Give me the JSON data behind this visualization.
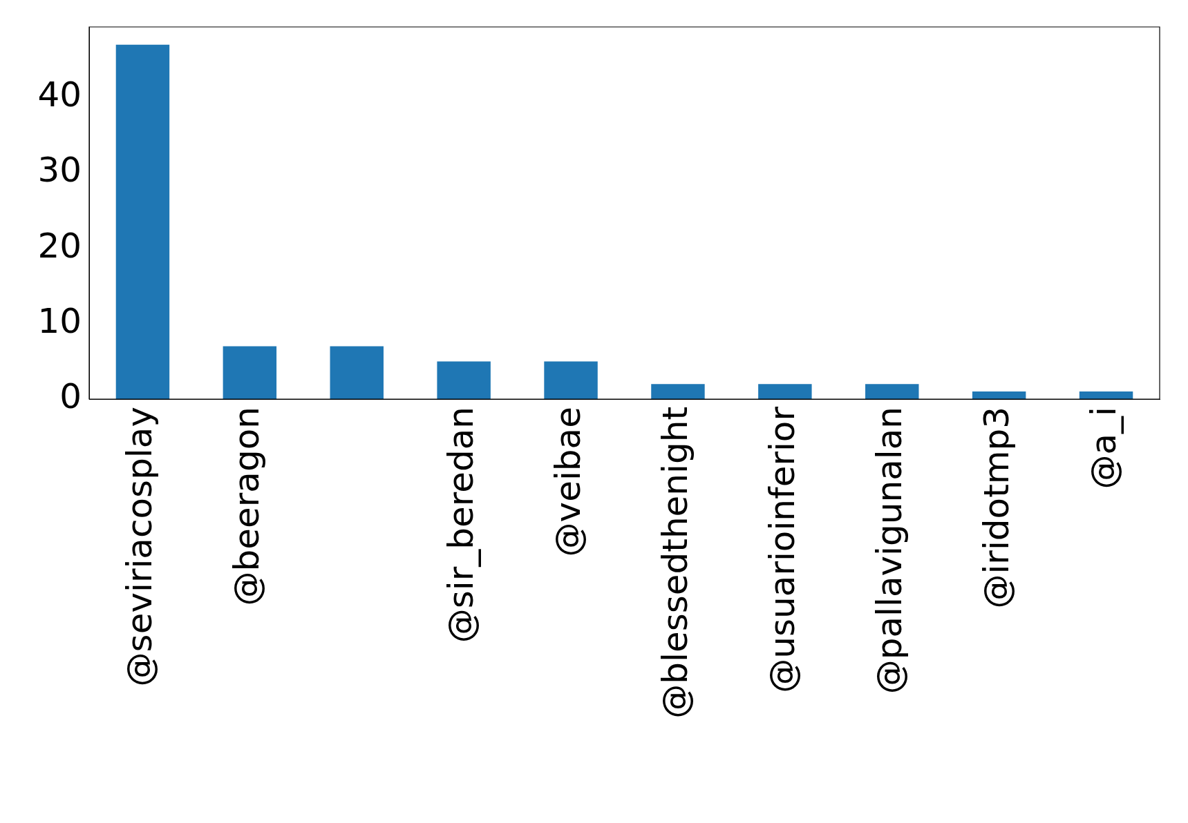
{
  "chart_data": {
    "type": "bar",
    "categories": [
      "@seviriacosplay",
      "@beeragon",
      null,
      "@sir_beredan",
      "@veibae",
      "@blessedthenight",
      "@usuarioinferior",
      "@pallavigunalan",
      "@iridotmp3",
      "@a_i"
    ],
    "values": [
      47,
      7,
      7,
      5,
      5,
      2,
      2,
      2,
      1,
      1
    ],
    "color": "#1f77b4",
    "ylim": [
      0,
      49.35
    ],
    "yticks": [
      0,
      10,
      20,
      30,
      40
    ],
    "grid": false,
    "legend": false
  }
}
